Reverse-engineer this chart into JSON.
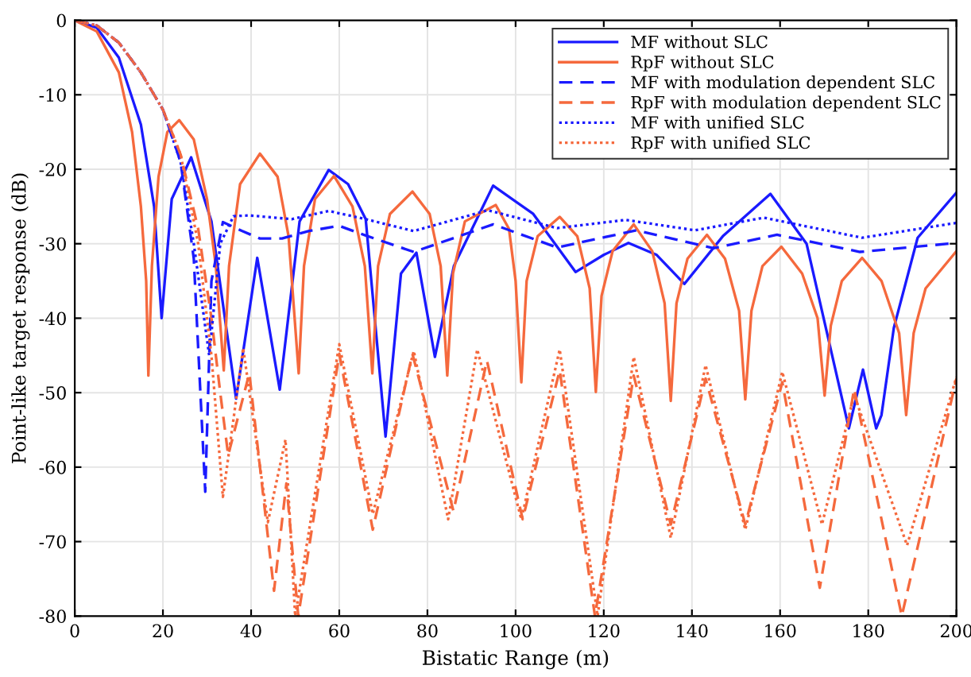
{
  "chart_data": {
    "type": "line",
    "xlabel": "Bistatic Range (m)",
    "ylabel": "Point-like target response (dB)",
    "xlim": [
      0,
      200
    ],
    "ylim": [
      -80,
      0
    ],
    "xticks": [
      0,
      20,
      40,
      60,
      80,
      100,
      120,
      140,
      160,
      180,
      200
    ],
    "yticks": [
      -80,
      -70,
      -60,
      -50,
      -40,
      -30,
      -20,
      -10,
      0
    ],
    "grid": true,
    "legend": "top right",
    "series": [
      {
        "name": "MF without SLC",
        "color": "#1a1aff",
        "line_style": "solid",
        "x": [
          0,
          5,
          10,
          15,
          18,
          19.7,
          22,
          26.4,
          31,
          36.6,
          41.4,
          46.5,
          51,
          57.6,
          62,
          66,
          70.5,
          74,
          77.5,
          81.7,
          86,
          94.9,
          104,
          113.6,
          120,
          125.6,
          132,
          138.3,
          147,
          157.8,
          166,
          175.6,
          178.8,
          181.8,
          183,
          185.8,
          191.2,
          199.9
        ],
        "values": [
          0,
          -1,
          -5,
          -14,
          -25,
          -40,
          -24,
          -18.4,
          -27,
          -50.8,
          -31.9,
          -49.6,
          -27,
          -20.1,
          -22,
          -26.7,
          -55.9,
          -34,
          -31.2,
          -45.2,
          -33,
          -22.2,
          -26,
          -33.8,
          -31.5,
          -29.9,
          -31.5,
          -35.4,
          -29,
          -23.3,
          -30,
          -54.8,
          -46.9,
          -54.8,
          -53,
          -41.3,
          -29.2,
          -23.2
        ]
      },
      {
        "name": "RpF without SLC",
        "color": "#f5693d",
        "line_style": "solid",
        "x": [
          0,
          5,
          10,
          13,
          15,
          16.2,
          16.7,
          17.5,
          19,
          21,
          23.7,
          27,
          30,
          32,
          33.8,
          35,
          37.5,
          42,
          46,
          48.5,
          50.8,
          52,
          54.5,
          58.8,
          63,
          65.8,
          67.5,
          68.8,
          71.5,
          76.6,
          80.5,
          83,
          84.5,
          85.8,
          88.5,
          95.5,
          98.5,
          100,
          101.3,
          102.5,
          105,
          110,
          114,
          116.8,
          118.2,
          119.5,
          122,
          126.8,
          131,
          133.8,
          135.2,
          136.5,
          139,
          143.4,
          147.5,
          150.7,
          152.1,
          153.5,
          156,
          160.3,
          165,
          168.5,
          170.1,
          171.5,
          174,
          178.6,
          183,
          187,
          188.6,
          190.3,
          193,
          200
        ],
        "values": [
          0,
          -1.5,
          -7,
          -15,
          -25,
          -35,
          -47.7,
          -33,
          -21,
          -15,
          -13.4,
          -16,
          -24,
          -33,
          -47,
          -33,
          -22,
          -17.9,
          -21,
          -29,
          -47.4,
          -33,
          -24,
          -20.9,
          -25,
          -33,
          -47.4,
          -33,
          -26,
          -23,
          -26,
          -33,
          -47.7,
          -34,
          -27,
          -24.8,
          -28,
          -35,
          -48.6,
          -35,
          -29,
          -26.4,
          -29,
          -36,
          -49.9,
          -37,
          -31,
          -27.4,
          -31,
          -38,
          -51.1,
          -38,
          -32,
          -28.8,
          -32,
          -39,
          -50.9,
          -39,
          -33,
          -30.4,
          -34,
          -40,
          -50.4,
          -41,
          -35,
          -31.9,
          -35,
          -42,
          -53,
          -42,
          -36,
          -31
        ]
      },
      {
        "name": "MF with modulation dependent SLC",
        "color": "#1a1aff",
        "line_style": "dashed",
        "x": [
          0,
          5,
          10,
          15,
          20,
          24,
          27,
          29.6,
          31,
          33.6,
          38,
          42,
          47,
          53,
          60,
          66,
          76.9,
          94.9,
          109.4,
          127.4,
          144.9,
          159.3,
          178.1,
          200
        ],
        "values": [
          0,
          -0.7,
          -3,
          -7,
          -12,
          -19,
          -32,
          -63.3,
          -35,
          -27.1,
          -28.3,
          -29.3,
          -29.3,
          -28.3,
          -27.6,
          -28.9,
          -31.1,
          -27.4,
          -30.5,
          -28.2,
          -30.6,
          -28.8,
          -31.1,
          -29.9
        ]
      },
      {
        "name": "RpF with modulation dependent SLC",
        "color": "#f5693d",
        "line_style": "dashed",
        "x": [
          0,
          5,
          10,
          15,
          20,
          24,
          28,
          31,
          33,
          34.8,
          39.6,
          45.2,
          48,
          50.7,
          60,
          67.6,
          76.6,
          85.9,
          93.5,
          101.6,
          110,
          118,
          126.8,
          135.2,
          143.1,
          152.1,
          160.5,
          169,
          176.8,
          187.6,
          200
        ],
        "values": [
          0,
          -0.7,
          -3,
          -7,
          -12,
          -18,
          -28,
          -40,
          -50,
          -58.4,
          -47.4,
          -76.6,
          -62.2,
          -80,
          -44.8,
          -68.4,
          -44.8,
          -65.9,
          -45.7,
          -67,
          -47,
          -80,
          -47.7,
          -67.7,
          -48.1,
          -67.7,
          -48.6,
          -76.2,
          -49.5,
          -80,
          -48.1
        ]
      },
      {
        "name": "MF with unified SLC",
        "color": "#1a1aff",
        "line_style": "dotted",
        "x": [
          0,
          5,
          10,
          15,
          20,
          24,
          27,
          30.5,
          33,
          36,
          39.6,
          49.2,
          57.6,
          66,
          76.9,
          93.7,
          109.4,
          125,
          140.7,
          156.3,
          178.6,
          200
        ],
        "values": [
          0,
          -0.7,
          -3,
          -7,
          -12,
          -19,
          -30,
          -45,
          -30,
          -26.3,
          -26.2,
          -26.7,
          -25.6,
          -26.7,
          -28.3,
          -25.5,
          -27.9,
          -26.8,
          -28.2,
          -26.5,
          -29.2,
          -27.2
        ]
      },
      {
        "name": "RpF with unified SLC",
        "color": "#f5693d",
        "line_style": "dotted",
        "x": [
          0,
          5,
          10,
          15,
          20,
          24,
          28,
          31,
          33.6,
          38.2,
          43.8,
          47.8,
          50,
          60,
          67.6,
          76.9,
          84.7,
          91.3,
          101.3,
          110,
          118.6,
          126.8,
          135.2,
          143.1,
          152.1,
          160.5,
          169.5,
          176.8,
          188.8,
          200
        ],
        "values": [
          0,
          -0.7,
          -3,
          -7,
          -12,
          -18,
          -30,
          -45,
          -64,
          -44,
          -67.4,
          -56.3,
          -80,
          -43.5,
          -66.3,
          -44.4,
          -67,
          -44.2,
          -67,
          -44.2,
          -80,
          -45.2,
          -69.5,
          -46.3,
          -68.4,
          -47.2,
          -67.7,
          -50.3,
          -70.5,
          -47.9
        ]
      }
    ]
  }
}
